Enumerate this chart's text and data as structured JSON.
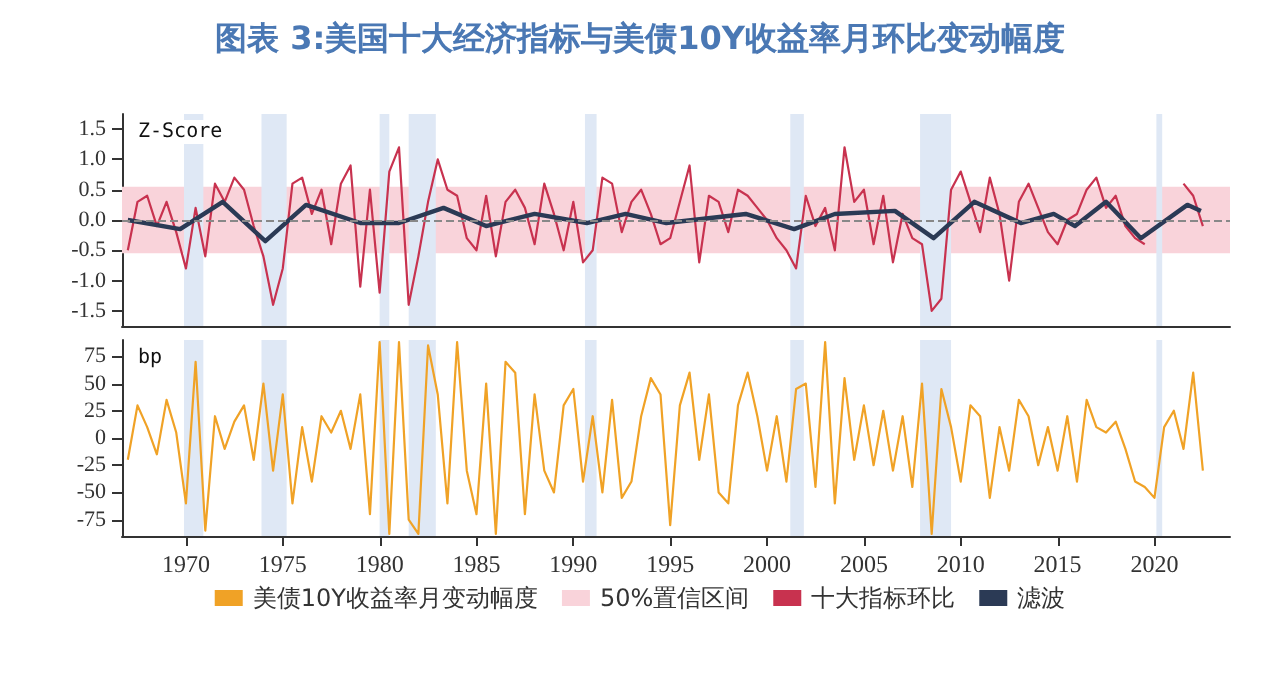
{
  "chart_data": [
    {
      "type": "line",
      "title": "图表 3:美国十大经济指标与美债10Y收益率月环比变动幅度",
      "ylabel": "Z-Score",
      "xlim": [
        1966.7,
        2023.9
      ],
      "xticks": [
        1970,
        1975,
        1980,
        1985,
        1990,
        1995,
        2000,
        2005,
        2010,
        2015,
        2020
      ],
      "ylim": [
        -1.75,
        1.75
      ],
      "yticks": [
        -1.5,
        {
          "value": -1,
          "label": "-1.0"
        },
        -0.5,
        {
          "value": 0,
          "label": "0.0"
        },
        0.5,
        {
          "value": 1,
          "label": "1.0"
        },
        1.5
      ],
      "tick_labels": "y",
      "marker": "none",
      "line_style": "solid",
      "grid": false,
      "legend": "bottom",
      "x": [
        1967,
        1967.5,
        1968,
        1968.5,
        1969,
        1969.5,
        1970,
        1970.5,
        1971,
        1971.5,
        1972,
        1972.5,
        1973,
        1973.5,
        1974,
        1974.5,
        1975,
        1975.5,
        1976,
        1976.5,
        1977,
        1977.5,
        1978,
        1978.5,
        1979,
        1979.5,
        1980,
        1980.5,
        1981,
        1981.5,
        1982,
        1982.5,
        1983,
        1983.5,
        1984,
        1984.5,
        1985,
        1985.5,
        1986,
        1986.5,
        1987,
        1987.5,
        1988,
        1988.5,
        1989,
        1989.5,
        1990,
        1990.5,
        1991,
        1991.5,
        1992,
        1992.5,
        1993,
        1993.5,
        1994,
        1994.5,
        1995,
        1995.5,
        1996,
        1996.5,
        1997,
        1997.5,
        1998,
        1998.5,
        1999,
        1999.5,
        2000,
        2000.5,
        2001,
        2001.5,
        2002,
        2002.5,
        2003,
        2003.5,
        2004,
        2004.5,
        2005,
        2005.5,
        2006,
        2006.5,
        2007,
        2007.5,
        2008,
        2008.5,
        2009,
        2009.5,
        2010,
        2010.5,
        2011,
        2011.5,
        2012,
        2012.5,
        2013,
        2013.5,
        2014,
        2014.5,
        2015,
        2015.5,
        2016,
        2016.5,
        2017,
        2017.5,
        2018,
        2018.5,
        2019,
        2019.5,
        2020,
        2020.5,
        2021,
        2021.5,
        2022,
        2022.5
      ],
      "series": [
        {
          "name": "十大指标环比",
          "color": "#c8324f",
          "values": [
            -0.5,
            0.3,
            0.4,
            -0.1,
            0.3,
            -0.2,
            -0.8,
            0.2,
            -0.6,
            0.6,
            0.3,
            0.7,
            0.5,
            -0.1,
            -0.6,
            -1.4,
            -0.8,
            0.6,
            0.7,
            0.1,
            0.5,
            -0.4,
            0.6,
            0.9,
            -1.1,
            0.5,
            -1.2,
            0.8,
            1.2,
            -1.4,
            -0.6,
            0.3,
            1.0,
            0.5,
            0.4,
            -0.3,
            -0.5,
            0.4,
            -0.6,
            0.3,
            0.5,
            0.2,
            -0.4,
            0.6,
            0.1,
            -0.5,
            0.3,
            -0.7,
            -0.5,
            0.7,
            0.6,
            -0.2,
            0.3,
            0.5,
            0.1,
            -0.4,
            -0.3,
            0.3,
            0.9,
            -0.7,
            0.4,
            0.3,
            -0.2,
            0.5,
            0.4,
            0.2,
            0.0,
            -0.3,
            -0.5,
            -0.8,
            0.4,
            -0.1,
            0.2,
            -0.5,
            1.2,
            0.3,
            0.5,
            -0.4,
            0.4,
            -0.7,
            0.1,
            -0.3,
            -0.4,
            -1.5,
            -1.3,
            0.5,
            0.8,
            0.3,
            -0.2,
            0.7,
            0.1,
            -1.0,
            0.3,
            0.6,
            0.2,
            -0.2,
            -0.4,
            0.0,
            0.1,
            0.5,
            0.7,
            0.2,
            0.4,
            -0.1,
            -0.3,
            -0.4,
            null,
            null,
            null,
            0.6,
            0.4,
            -0.1
          ]
        },
        {
          "name": "滤波",
          "color": "#2b3a55",
          "x": [
            1967,
            1969.7,
            1971.9,
            1974.1,
            1976.2,
            1979,
            1981,
            1983.3,
            1985.5,
            1988,
            1990.7,
            1992.7,
            1994.8,
            1998.9,
            2001.4,
            2003.5,
            2006.6,
            2008.6,
            2010.7,
            2013.1,
            2014.8,
            2015.9,
            2017.5,
            2019.3,
            2021.7,
            2022.4
          ],
          "values": [
            0.0,
            -0.15,
            0.3,
            -0.35,
            0.25,
            -0.05,
            -0.05,
            0.2,
            -0.1,
            0.1,
            -0.05,
            0.1,
            -0.05,
            0.1,
            -0.15,
            0.1,
            0.15,
            -0.3,
            0.3,
            -0.05,
            0.1,
            -0.1,
            0.3,
            -0.3,
            0.25,
            0.15
          ]
        }
      ],
      "ref_lines": [
        {
          "axis": "y",
          "value": 0,
          "color": "#888888",
          "line_style": "dashed"
        }
      ],
      "bands": [
        {
          "axis": "y",
          "from": -0.55,
          "to": 0.55,
          "label": "50%置信区间",
          "color": "#f9d3da"
        },
        {
          "axis": "x",
          "from": 1969.9,
          "to": 1970.9,
          "color": "#dfe8f5"
        },
        {
          "axis": "x",
          "from": 1973.9,
          "to": 1975.2,
          "color": "#dfe8f5"
        },
        {
          "axis": "x",
          "from": 1980.0,
          "to": 1980.5,
          "color": "#dfe8f5"
        },
        {
          "axis": "x",
          "from": 1981.5,
          "to": 1982.9,
          "color": "#dfe8f5"
        },
        {
          "axis": "x",
          "from": 1990.6,
          "to": 1991.2,
          "color": "#dfe8f5"
        },
        {
          "axis": "x",
          "from": 2001.2,
          "to": 2001.9,
          "color": "#dfe8f5"
        },
        {
          "axis": "x",
          "from": 2007.9,
          "to": 2009.5,
          "color": "#dfe8f5"
        },
        {
          "axis": "x",
          "from": 2020.1,
          "to": 2020.4,
          "color": "#dfe8f5"
        }
      ]
    },
    {
      "type": "line",
      "ylabel": "bp",
      "xlim": [
        1966.7,
        2023.9
      ],
      "xticks": [
        1970,
        1975,
        1980,
        1985,
        1990,
        1995,
        2000,
        2005,
        2010,
        2015,
        2020
      ],
      "ylim": [
        -90,
        90
      ],
      "yticks": [
        -75,
        -50,
        -25,
        0,
        25,
        50,
        75
      ],
      "marker": "none",
      "line_style": "solid",
      "grid": false,
      "legend": "bottom",
      "x": [
        1967,
        1967.5,
        1968,
        1968.5,
        1969,
        1969.5,
        1970,
        1970.5,
        1971,
        1971.5,
        1972,
        1972.5,
        1973,
        1973.5,
        1974,
        1974.5,
        1975,
        1975.5,
        1976,
        1976.5,
        1977,
        1977.5,
        1978,
        1978.5,
        1979,
        1979.5,
        1980,
        1980.5,
        1981,
        1981.5,
        1982,
        1982.5,
        1983,
        1983.5,
        1984,
        1984.5,
        1985,
        1985.5,
        1986,
        1986.5,
        1987,
        1987.5,
        1988,
        1988.5,
        1989,
        1989.5,
        1990,
        1990.5,
        1991,
        1991.5,
        1992,
        1992.5,
        1993,
        1993.5,
        1994,
        1994.5,
        1995,
        1995.5,
        1996,
        1996.5,
        1997,
        1997.5,
        1998,
        1998.5,
        1999,
        1999.5,
        2000,
        2000.5,
        2001,
        2001.5,
        2002,
        2002.5,
        2003,
        2003.5,
        2004,
        2004.5,
        2005,
        2005.5,
        2006,
        2006.5,
        2007,
        2007.5,
        2008,
        2008.5,
        2009,
        2009.5,
        2010,
        2010.5,
        2011,
        2011.5,
        2012,
        2012.5,
        2013,
        2013.5,
        2014,
        2014.5,
        2015,
        2015.5,
        2016,
        2016.5,
        2017,
        2017.5,
        2018,
        2018.5,
        2019,
        2019.5,
        2020,
        2020.5,
        2021,
        2021.5,
        2022,
        2022.5
      ],
      "series": [
        {
          "name": "美债10Y收益率月变动幅度",
          "color": "#f0a226",
          "values": [
            -20,
            30,
            10,
            -15,
            35,
            5,
            -60,
            70,
            -85,
            20,
            -10,
            15,
            30,
            -20,
            50,
            -30,
            40,
            -60,
            10,
            -40,
            20,
            5,
            25,
            -10,
            40,
            -70,
            88,
            -88,
            88,
            -75,
            -88,
            85,
            40,
            -60,
            88,
            -30,
            -70,
            50,
            -88,
            70,
            60,
            -70,
            40,
            -30,
            -50,
            30,
            45,
            -40,
            20,
            -50,
            35,
            -55,
            -40,
            20,
            55,
            40,
            -80,
            30,
            60,
            -20,
            40,
            -50,
            -60,
            30,
            60,
            20,
            -30,
            20,
            -40,
            45,
            50,
            -45,
            88,
            -60,
            55,
            -20,
            30,
            -25,
            25,
            -30,
            20,
            -45,
            50,
            -88,
            45,
            10,
            -40,
            30,
            20,
            -55,
            10,
            -30,
            35,
            20,
            -25,
            10,
            -30,
            20,
            -40,
            35,
            10,
            5,
            15,
            -10,
            -40,
            -45,
            -55,
            10,
            25,
            -10,
            60,
            -30
          ]
        }
      ],
      "bands": [
        {
          "axis": "x",
          "from": 1969.9,
          "to": 1970.9,
          "color": "#dfe8f5"
        },
        {
          "axis": "x",
          "from": 1973.9,
          "to": 1975.2,
          "color": "#dfe8f5"
        },
        {
          "axis": "x",
          "from": 1980.0,
          "to": 1980.5,
          "color": "#dfe8f5"
        },
        {
          "axis": "x",
          "from": 1981.5,
          "to": 1982.9,
          "color": "#dfe8f5"
        },
        {
          "axis": "x",
          "from": 1990.6,
          "to": 1991.2,
          "color": "#dfe8f5"
        },
        {
          "axis": "x",
          "from": 2001.2,
          "to": 2001.9,
          "color": "#dfe8f5"
        },
        {
          "axis": "x",
          "from": 2007.9,
          "to": 2009.5,
          "color": "#dfe8f5"
        },
        {
          "axis": "x",
          "from": 2020.1,
          "to": 2020.4,
          "color": "#dfe8f5"
        }
      ]
    }
  ]
}
